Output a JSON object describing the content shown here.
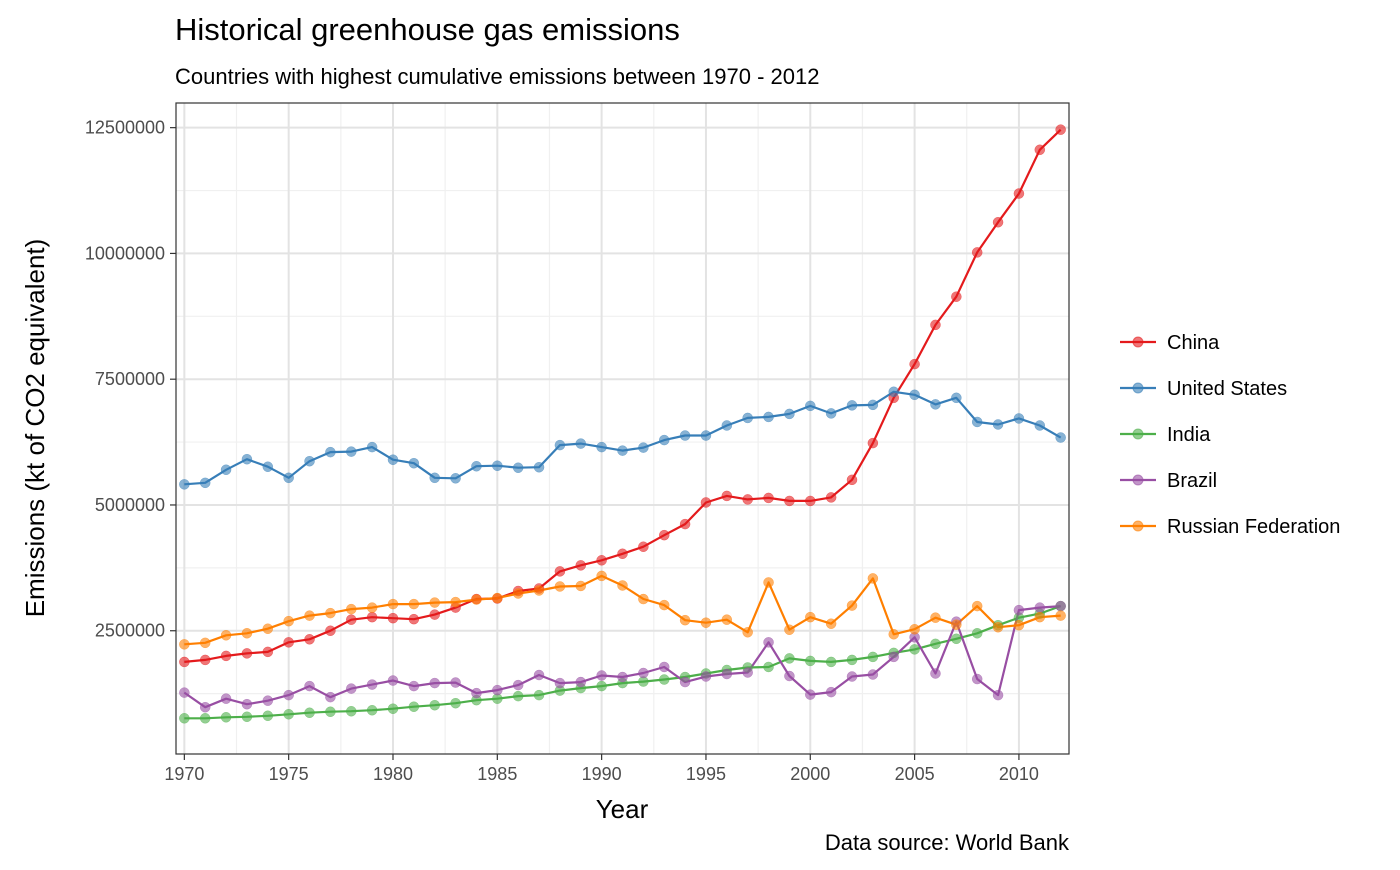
{
  "chart_data": {
    "type": "line",
    "title": "Historical greenhouse gas emissions",
    "subtitle": "Countries with highest cumulative emissions between 1970 - 2012",
    "xlabel": "Year",
    "ylabel": "Emissions (kt of CO2 equivalent)",
    "caption": "Data source: World Bank",
    "xlim": [
      1969.6,
      2012.4
    ],
    "ylim": [
      50000,
      12990000
    ],
    "x_ticks": [
      1970,
      1975,
      1980,
      1985,
      1990,
      1995,
      2000,
      2005,
      2010
    ],
    "y_ticks": [
      2500000,
      5000000,
      7500000,
      10000000,
      12500000
    ],
    "y_tick_labels": [
      "2500000",
      "5000000",
      "7500000",
      "10000000",
      "12500000"
    ],
    "x_minor_gridlines": [
      1972.5,
      1977.5,
      1982.5,
      1987.5,
      1992.5,
      1997.5,
      2002.5,
      2007.5
    ],
    "y_minor_gridlines": [
      1250000,
      3750000,
      6250000,
      8750000,
      11250000
    ],
    "grid": true,
    "legend_position": "right",
    "x": [
      1970,
      1971,
      1972,
      1973,
      1974,
      1975,
      1976,
      1977,
      1978,
      1979,
      1980,
      1981,
      1982,
      1983,
      1984,
      1985,
      1986,
      1987,
      1988,
      1989,
      1990,
      1991,
      1992,
      1993,
      1994,
      1995,
      1996,
      1997,
      1998,
      1999,
      2000,
      2001,
      2002,
      2003,
      2004,
      2005,
      2006,
      2007,
      2008,
      2009,
      2010,
      2011,
      2012
    ],
    "series": [
      {
        "name": "China",
        "color": "#e41a1c",
        "values": [
          1880000,
          1920000,
          2000000,
          2050000,
          2080000,
          2270000,
          2330000,
          2500000,
          2720000,
          2770000,
          2750000,
          2730000,
          2820000,
          2960000,
          3130000,
          3140000,
          3290000,
          3340000,
          3680000,
          3800000,
          3900000,
          4030000,
          4170000,
          4400000,
          4620000,
          5050000,
          5180000,
          5110000,
          5140000,
          5080000,
          5080000,
          5150000,
          5500000,
          6230000,
          7130000,
          7800000,
          8580000,
          9140000,
          10020000,
          10620000,
          11190000,
          12060000,
          12460000
        ]
      },
      {
        "name": "United States",
        "color": "#377eb8",
        "values": [
          5410000,
          5440000,
          5700000,
          5910000,
          5760000,
          5540000,
          5870000,
          6050000,
          6060000,
          6150000,
          5900000,
          5830000,
          5540000,
          5530000,
          5770000,
          5780000,
          5740000,
          5750000,
          6190000,
          6220000,
          6150000,
          6080000,
          6140000,
          6290000,
          6380000,
          6380000,
          6580000,
          6730000,
          6750000,
          6810000,
          6970000,
          6820000,
          6980000,
          6990000,
          7250000,
          7190000,
          7000000,
          7130000,
          6650000,
          6600000,
          6720000,
          6580000,
          6340000
        ]
      },
      {
        "name": "India",
        "color": "#4daf4a",
        "values": [
          760000,
          760000,
          780000,
          790000,
          810000,
          840000,
          870000,
          890000,
          900000,
          920000,
          950000,
          990000,
          1020000,
          1060000,
          1120000,
          1150000,
          1200000,
          1220000,
          1310000,
          1360000,
          1400000,
          1460000,
          1490000,
          1530000,
          1580000,
          1650000,
          1720000,
          1770000,
          1780000,
          1950000,
          1900000,
          1880000,
          1920000,
          1980000,
          2060000,
          2130000,
          2240000,
          2340000,
          2450000,
          2610000,
          2760000,
          2840000,
          2990000
        ]
      },
      {
        "name": "Brazil",
        "color": "#984ea3",
        "values": [
          1270000,
          980000,
          1150000,
          1040000,
          1110000,
          1220000,
          1400000,
          1180000,
          1350000,
          1430000,
          1510000,
          1400000,
          1460000,
          1470000,
          1260000,
          1320000,
          1420000,
          1620000,
          1460000,
          1480000,
          1610000,
          1580000,
          1660000,
          1780000,
          1480000,
          1590000,
          1640000,
          1670000,
          2270000,
          1600000,
          1230000,
          1280000,
          1590000,
          1630000,
          1980000,
          2370000,
          1650000,
          2680000,
          1540000,
          1220000,
          2910000,
          2960000,
          2990000
        ]
      },
      {
        "name": "Russian Federation",
        "color": "#ff7f00",
        "values": [
          2230000,
          2260000,
          2410000,
          2450000,
          2540000,
          2690000,
          2800000,
          2850000,
          2930000,
          2960000,
          3030000,
          3030000,
          3060000,
          3070000,
          3120000,
          3150000,
          3240000,
          3300000,
          3380000,
          3390000,
          3590000,
          3400000,
          3130000,
          3010000,
          2710000,
          2660000,
          2720000,
          2470000,
          3460000,
          2520000,
          2770000,
          2640000,
          3000000,
          3540000,
          2430000,
          2530000,
          2760000,
          2620000,
          2990000,
          2570000,
          2610000,
          2770000,
          2800000
        ]
      }
    ]
  }
}
